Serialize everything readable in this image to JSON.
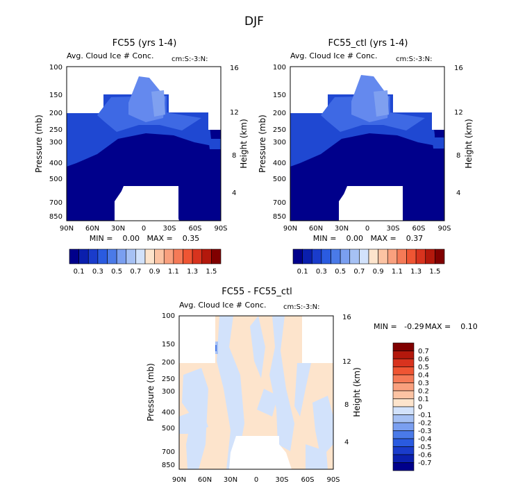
{
  "suptitle": "DJF",
  "colors": {
    "cb_main": [
      "#00008b",
      "#0a1fad",
      "#1a3ccb",
      "#2a5be0",
      "#4a7ae8",
      "#7a9ff0",
      "#a6c1f4",
      "#d2e2fb",
      "#fde4cc",
      "#fcc3a3",
      "#f9a07e",
      "#f57a57",
      "#ef5533",
      "#d8331e",
      "#b3180c",
      "#800000"
    ],
    "cb_diff": [
      "#00008b",
      "#0b20ae",
      "#1a3ccb",
      "#2a5be0",
      "#4a7ae8",
      "#7a9ff0",
      "#a6c1f4",
      "#d2e2fb",
      "#fde4cc",
      "#fcc3a3",
      "#f9a07e",
      "#f57a57",
      "#ef5533",
      "#d8331e",
      "#b3180c",
      "#800000"
    ]
  },
  "chart_data": [
    {
      "type": "contour",
      "title": "FC55 (yrs 1-4)",
      "subtitle_left": "Avg. Cloud Ice # Conc.",
      "subtitle_right": "cm:S:-3:N:",
      "xlabel": "",
      "ylabel": "Pressure (mb)",
      "ylabel_right": "Height (km)",
      "x_ticks": [
        "90N",
        "60N",
        "30N",
        "0",
        "30S",
        "60S",
        "90S"
      ],
      "y_ticks": [
        "100",
        "150",
        "200",
        "250",
        "300",
        "400",
        "500",
        "700",
        "850"
      ],
      "y_right_ticks": [
        "16",
        "12",
        "8",
        "4"
      ],
      "stats": "MIN =    0.00   MAX =    0.35",
      "min": 0.0,
      "max": 0.35
    },
    {
      "type": "contour",
      "title": "FC55_ctl (yrs 1-4)",
      "subtitle_left": "Avg. Cloud Ice # Conc.",
      "subtitle_right": "cm:S:-3:N:",
      "xlabel": "",
      "ylabel": "Pressure (mb)",
      "ylabel_right": "Height (km)",
      "x_ticks": [
        "90N",
        "60N",
        "30N",
        "0",
        "30S",
        "60S",
        "90S"
      ],
      "y_ticks": [
        "100",
        "150",
        "200",
        "250",
        "300",
        "400",
        "500",
        "700",
        "850"
      ],
      "y_right_ticks": [
        "16",
        "12",
        "8",
        "4"
      ],
      "stats": "MIN =    0.00   MAX =    0.37",
      "min": 0.0,
      "max": 0.37
    },
    {
      "type": "contour",
      "title": "FC55 - FC55_ctl",
      "subtitle_left": "Avg. Cloud Ice # Conc.",
      "subtitle_right": "cm:S:-3:N:",
      "xlabel": "",
      "ylabel": "Pressure (mb)",
      "ylabel_right": "Height (km)",
      "x_ticks": [
        "90N",
        "60N",
        "30N",
        "0",
        "30S",
        "60S",
        "90S"
      ],
      "y_ticks": [
        "100",
        "150",
        "200",
        "250",
        "300",
        "400",
        "500",
        "700",
        "850"
      ],
      "y_right_ticks": [
        "16",
        "12",
        "8",
        "4"
      ],
      "stats_min": "MIN =   -0.29",
      "stats_max": "MAX =    0.10",
      "min": -0.29,
      "max": 0.1
    }
  ],
  "colorbar_main": {
    "labels": [
      "0.1",
      "0.3",
      "0.5",
      "0.7",
      "0.9",
      "1.1",
      "1.3",
      "1.5"
    ]
  },
  "colorbar_diff": {
    "labels": [
      "0.7",
      "0.6",
      "0.5",
      "0.4",
      "0.3",
      "0.2",
      "0.1",
      "0",
      "-0.1",
      "-0.2",
      "-0.3",
      "-0.4",
      "-0.5",
      "-0.6",
      "-0.7"
    ]
  }
}
